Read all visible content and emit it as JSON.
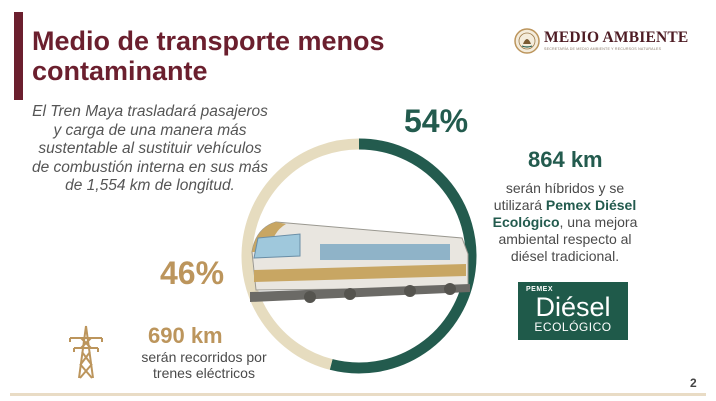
{
  "slide": {
    "title_line1": "Medio de transporte menos",
    "title_line2": "contaminante",
    "page_number": "2"
  },
  "logo": {
    "name": "MEDIO AMBIENTE",
    "subtitle": "SECRETARÍA DE MEDIO AMBIENTE Y RECURSOS NATURALES"
  },
  "intro": {
    "text": "El Tren Maya trasladará pasajeros y carga de una manera más sustentable al sustituir vehículos de combustión interna en sus más de 1,554 km de longitud."
  },
  "chart_data": {
    "type": "pie",
    "categories": [
      "híbridos con Pemex Diésel Ecológico",
      "trenes eléctricos"
    ],
    "values": [
      54,
      46
    ],
    "labels": [
      "54%",
      "46%"
    ],
    "colors": [
      "#235b4e",
      "#e6dcbf"
    ]
  },
  "right": {
    "km": "864 km",
    "desc_pre": "serán híbridos y se utilizará",
    "desc_bold": "Pemex Diésel Ecológico",
    "desc_post": ", una mejora ambiental respecto al diésel tradicional."
  },
  "left": {
    "km": "690 km",
    "desc": "serán recorridos por trenes eléctricos"
  },
  "pemex_logo": {
    "brand": "PEMEX",
    "product": "Diésel",
    "tag": "ECOLÓGICO"
  },
  "icons": {
    "pylon": "electric-pylon-icon",
    "seal": "mexico-seal-icon",
    "train": "train-illustration"
  },
  "colors": {
    "brand_wine": "#6b1f2e",
    "green": "#235b4e",
    "gold": "#bc955c"
  }
}
